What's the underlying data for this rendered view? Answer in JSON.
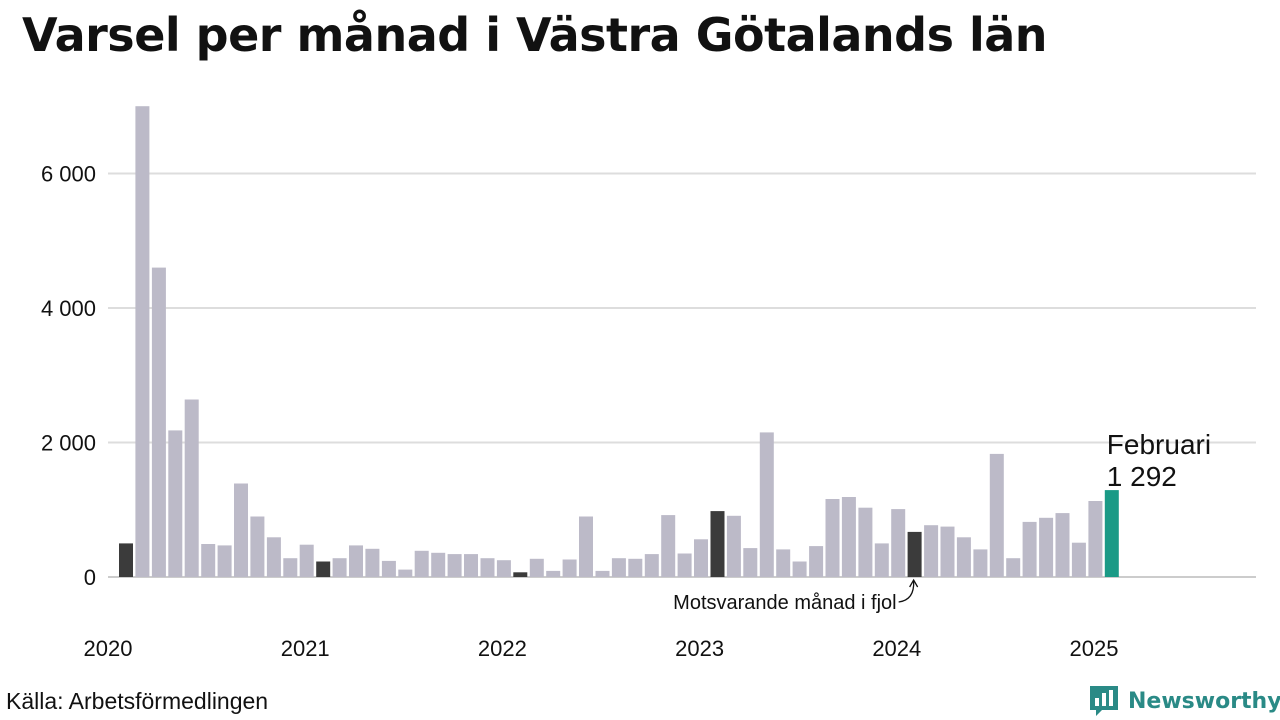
{
  "title": "Varsel per månad i Västra Götalands län",
  "source": "Källa: Arbetsförmedlingen",
  "brand": {
    "name": "Newsworthy",
    "icon": "bar-chart-logo-icon",
    "color": "#2a8a86"
  },
  "colors": {
    "default": "#bcbac8",
    "same_month": "#3b3b3b",
    "highlight": "#1a9a86",
    "grid": "#dddddd"
  },
  "chart_data": {
    "type": "bar",
    "title": "Varsel per månad i Västra Götalands län",
    "xlabel": "",
    "ylabel": "",
    "ylim": [
      0,
      7000
    ],
    "yticks": [
      0,
      2000,
      4000,
      6000
    ],
    "ytick_labels": [
      "0",
      "2 000",
      "4 000",
      "6 000"
    ],
    "x_tick_labels": [
      "2020",
      "2021",
      "2022",
      "2023",
      "2024",
      "2025"
    ],
    "grid": true,
    "categories": [
      "2020-02",
      "2020-03",
      "2020-04",
      "2020-05",
      "2020-06",
      "2020-07",
      "2020-08",
      "2020-09",
      "2020-10",
      "2020-11",
      "2020-12",
      "2021-01",
      "2021-02",
      "2021-03",
      "2021-04",
      "2021-05",
      "2021-06",
      "2021-07",
      "2021-08",
      "2021-09",
      "2021-10",
      "2021-11",
      "2021-12",
      "2022-01",
      "2022-02",
      "2022-03",
      "2022-04",
      "2022-05",
      "2022-06",
      "2022-07",
      "2022-08",
      "2022-09",
      "2022-10",
      "2022-11",
      "2022-12",
      "2023-01",
      "2023-02",
      "2023-03",
      "2023-04",
      "2023-05",
      "2023-06",
      "2023-07",
      "2023-08",
      "2023-09",
      "2023-10",
      "2023-11",
      "2023-12",
      "2024-01",
      "2024-02",
      "2024-03",
      "2024-04",
      "2024-05",
      "2024-06",
      "2024-07",
      "2024-08",
      "2024-09",
      "2024-10",
      "2024-11",
      "2024-12",
      "2025-01",
      "2025-02"
    ],
    "values": [
      500,
      7000,
      4600,
      2180,
      2640,
      490,
      470,
      1390,
      900,
      590,
      280,
      480,
      230,
      280,
      470,
      420,
      240,
      110,
      390,
      360,
      340,
      340,
      280,
      250,
      70,
      270,
      90,
      260,
      900,
      90,
      280,
      270,
      340,
      920,
      350,
      560,
      980,
      910,
      430,
      2150,
      410,
      230,
      460,
      1160,
      1190,
      1030,
      500,
      1010,
      670,
      770,
      750,
      590,
      410,
      1830,
      280,
      820,
      880,
      950,
      510,
      1130,
      1292
    ],
    "same_month_marked": [
      "2020-02",
      "2021-02",
      "2022-02",
      "2023-02",
      "2024-02"
    ],
    "highlighted": "2025-02",
    "annotations": {
      "current_month": "Februari",
      "current_value": "1 292",
      "last_year": "Motsvarande månad i fjol"
    }
  }
}
